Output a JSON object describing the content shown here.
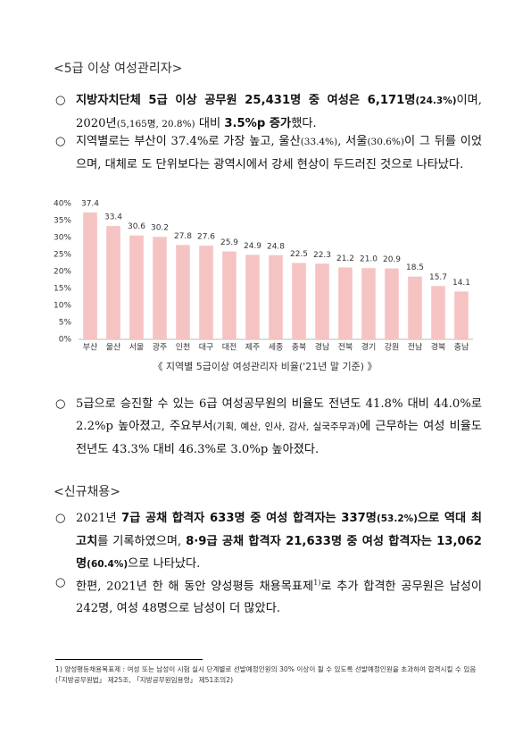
{
  "bullet": "○",
  "sections": [
    {
      "heading": "<5급 이상 여성관리자>",
      "paragraphs": [
        {
          "runs": [
            {
              "text": "지방자치단체 5급 이상 공무원 25,431명 중 여성은 6,171명",
              "bold": true
            },
            {
              "text": "(24.3%)",
              "bold": true,
              "small": true
            },
            {
              "text": "이며, 2020년"
            },
            {
              "text": "(5,165명, 20.8%)",
              "small": true
            },
            {
              "text": " 대비 "
            },
            {
              "text": "3.5%p 증가",
              "bold": true
            },
            {
              "text": "했다."
            }
          ]
        },
        {
          "runs": [
            {
              "text": "지역별로는 부산이 37.4%로 가장 높고, 울산"
            },
            {
              "text": "(33.4%)",
              "small": true
            },
            {
              "text": ", 서울"
            },
            {
              "text": "(30.6%)",
              "small": true
            },
            {
              "text": "이 그 뒤를 이었으며, 대체로 도 단위보다는 광역시에서 강세 현상이 두드러진 것으로 나타났다."
            }
          ]
        },
        {
          "runs": [
            {
              "text": "5급으로 승진할 수 있는 6급 여성공무원의 비율도 전년도 41.8% 대비 44.0%로 2.2%p 높아졌고, 주요부서"
            },
            {
              "text": "(기획, 예산, 인사, 감사, 실국주무과)",
              "small": true
            },
            {
              "text": "에 근무하는 여성 비율도 전년도 43.3% 대비 46.3%로 3.0%p 높아졌다."
            }
          ]
        }
      ]
    },
    {
      "heading": "<신규채용>",
      "paragraphs": [
        {
          "runs": [
            {
              "text": "2021년 "
            },
            {
              "text": "7급 공채 합격자 633명 중 여성 합격자는 337명",
              "bold": true
            },
            {
              "text": "(53.2%)",
              "bold": true,
              "small": true
            },
            {
              "text": "으로 역대 최고치",
              "bold": true
            },
            {
              "text": "를 기록하였으며, "
            },
            {
              "text": "8·9급 공채 합격자 21,633명 중 여성 합격자는 13,062명",
              "bold": true
            },
            {
              "text": "(60.4%)",
              "bold": true,
              "small": true
            },
            {
              "text": "으로 나타났다."
            }
          ]
        },
        {
          "runs": [
            {
              "text": "한편, 2021년 한 해 동안 양성평등 채용목표제"
            },
            {
              "text": "1)",
              "sup": true
            },
            {
              "text": "로 추가 합격한 공무원은 남성이 242명, 여성 48명으로 남성이 더 많았다."
            }
          ]
        }
      ]
    }
  ],
  "footnote": "1) 양성평등채용목표제 : 여성 또는 남성이 시험 실시 단계별로 선발예정인원의 30% 이상이 될 수 있도록 선발예정인원을 초과하여 합격시킬 수 있음(「지방공무원법」 제25조, 「지방공무원임용령」 제51조의2)",
  "chart_data": {
    "type": "bar",
    "caption": "《 지역별 5급이상 여성관리자 비율('21년 말 기준) 》",
    "categories": [
      "부산",
      "울산",
      "서울",
      "광주",
      "인천",
      "대구",
      "대전",
      "제주",
      "세종",
      "충북",
      "경남",
      "전북",
      "경기",
      "강원",
      "전남",
      "경북",
      "충남"
    ],
    "values": [
      37.4,
      33.4,
      30.6,
      30.2,
      27.8,
      27.6,
      25.9,
      24.9,
      24.8,
      22.5,
      22.3,
      21.2,
      21.0,
      20.9,
      18.5,
      15.7,
      14.1
    ],
    "value_labels": [
      "37.4",
      "33.4",
      "30.6",
      "30.2",
      "27.8",
      "27.6",
      "25.9",
      "24.9",
      "24.8",
      "22.5",
      "22.3",
      "21.2",
      "21.0",
      "20.9",
      "18.5",
      "15.7",
      "14.1"
    ],
    "color": "#f6c3c3",
    "ylim": [
      0,
      40
    ],
    "yticks": [
      {
        "value": 0,
        "label": "0%"
      },
      {
        "value": 5,
        "label": "5%"
      },
      {
        "value": 10,
        "label": "10%"
      },
      {
        "value": 15,
        "label": "15%"
      },
      {
        "value": 20,
        "label": "20%"
      },
      {
        "value": 25,
        "label": "25%"
      },
      {
        "value": 30,
        "label": "30%"
      },
      {
        "value": 35,
        "label": "35%"
      },
      {
        "value": 40,
        "label": "40%"
      }
    ],
    "grid": false
  }
}
